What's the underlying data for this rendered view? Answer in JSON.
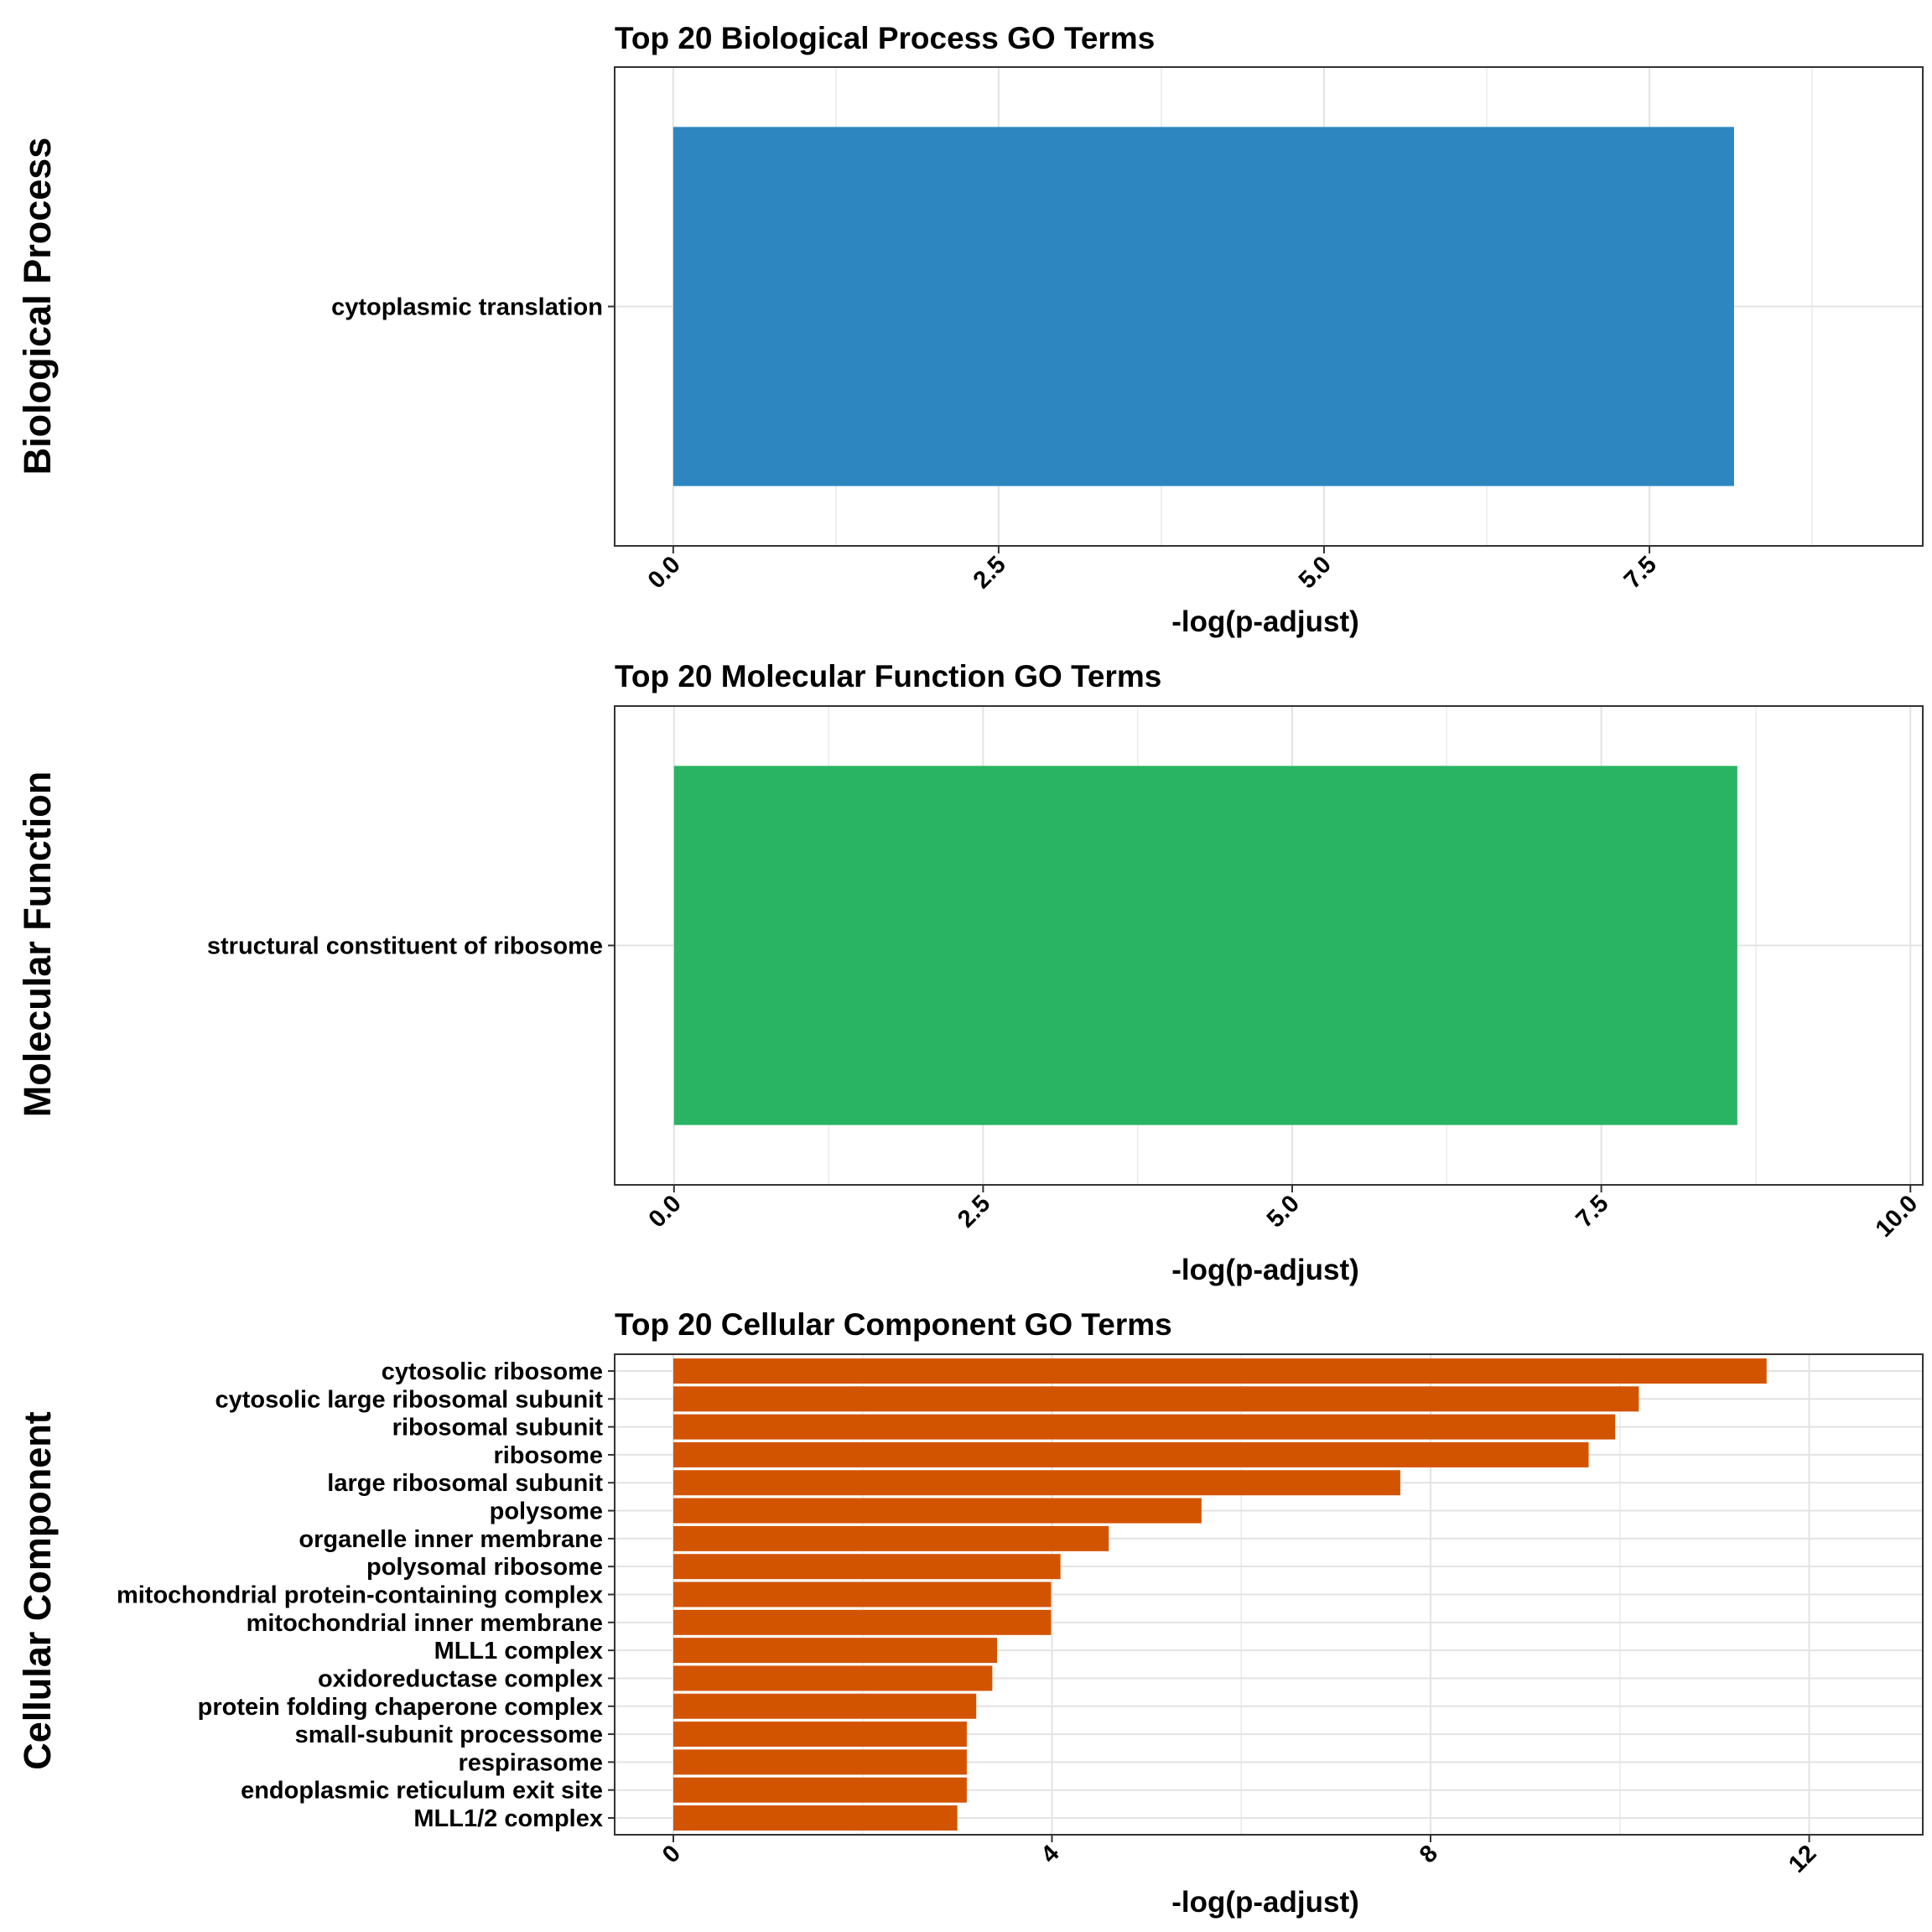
{
  "chart_data": [
    {
      "type": "bar",
      "orientation": "horizontal",
      "row_label": "Biological Process",
      "title": "Top 20 Biological Process GO Terms",
      "xlabel": "-log(p-adjust)",
      "ylabel": "",
      "categories": [
        "cytoplasmic translation"
      ],
      "values": [
        8.15
      ],
      "xlim": [
        -0.45,
        9.6
      ],
      "xticks": [
        0,
        2.5,
        5,
        7.5
      ],
      "xtick_labels": [
        "0.0",
        "2.5",
        "5.0",
        "7.5"
      ],
      "color": "#2E86C1",
      "grid": true
    },
    {
      "type": "bar",
      "orientation": "horizontal",
      "row_label": "Molecular Function",
      "title": "Top 20 Molecular Function GO Terms",
      "xlabel": "-log(p-adjust)",
      "ylabel": "",
      "categories": [
        "structural constituent of ribosome"
      ],
      "values": [
        8.6
      ],
      "xlim": [
        -0.48,
        10.1
      ],
      "xticks": [
        0,
        2.5,
        5,
        7.5,
        10
      ],
      "xtick_labels": [
        "0.0",
        "2.5",
        "5.0",
        "7.5",
        "10.0"
      ],
      "color": "#28B463",
      "grid": true
    },
    {
      "type": "bar",
      "orientation": "horizontal",
      "row_label": "Cellular Component",
      "title": "Top 20 Cellular Component GO Terms",
      "xlabel": "-log(p-adjust)",
      "ylabel": "",
      "categories": [
        "cytosolic ribosome",
        "cytosolic large ribosomal subunit",
        "ribosomal subunit",
        "ribosome",
        "large ribosomal subunit",
        "polysome",
        "organelle inner membrane",
        "polysomal ribosome",
        "mitochondrial protein-containing complex",
        "mitochondrial inner membrane",
        "MLL1 complex",
        "oxidoreductase complex",
        "protein folding chaperone complex",
        "small-subunit processome",
        "respirasome",
        "endoplasmic reticulum exit site",
        "MLL1/2 complex"
      ],
      "values": [
        11.55,
        10.2,
        9.95,
        9.67,
        7.68,
        5.58,
        4.6,
        4.09,
        3.99,
        3.99,
        3.42,
        3.37,
        3.2,
        3.1,
        3.1,
        3.1,
        3.0
      ],
      "xlim": [
        -0.62,
        13.2
      ],
      "xticks": [
        0,
        4,
        8,
        12
      ],
      "xtick_labels": [
        "0",
        "4",
        "8",
        "12"
      ],
      "color": "#D35400",
      "grid": true
    }
  ]
}
